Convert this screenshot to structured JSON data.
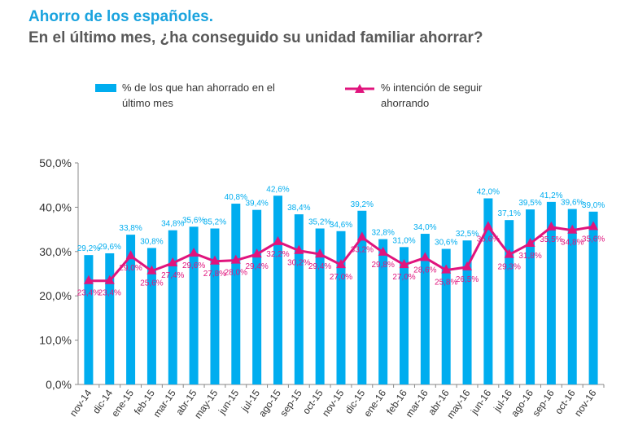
{
  "chart_data": {
    "type": "bar",
    "title": "Ahorro de los españoles.",
    "subtitle": "En el último mes, ¿ha conseguido su unidad familiar ahorrar?",
    "categories": [
      "nov-14",
      "dic-14",
      "ene-15",
      "feb-15",
      "mar-15",
      "abr-15",
      "may-15",
      "jun-15",
      "jul-15",
      "ago-15",
      "sep-15",
      "oct-15",
      "nov-15",
      "dic-15",
      "ene-16",
      "feb-16",
      "mar-16",
      "abr-16",
      "may-16",
      "jun-16",
      "jul-16",
      "ago-16",
      "sep-16",
      "oct-16",
      "nov-16"
    ],
    "series": [
      {
        "name": "% de los que han ahorrado en el último mes",
        "type": "bar",
        "color": "#00adef",
        "values": [
          29.2,
          29.6,
          33.8,
          30.8,
          34.8,
          35.6,
          35.2,
          40.8,
          39.4,
          42.6,
          38.4,
          35.2,
          34.6,
          39.2,
          32.8,
          31.0,
          34.0,
          30.6,
          32.5,
          42.0,
          37.1,
          39.5,
          41.2,
          39.6,
          39.0
        ]
      },
      {
        "name": "% intención de seguir ahorrando",
        "type": "line",
        "marker": "triangle",
        "color": "#e0147d",
        "values": [
          23.4,
          23.4,
          29.0,
          25.6,
          27.4,
          29.6,
          27.8,
          28.0,
          29.4,
          32.2,
          30.2,
          29.4,
          27.0,
          33.2,
          29.8,
          27.0,
          28.6,
          25.8,
          26.5,
          35.6,
          29.3,
          31.8,
          35.5,
          34.8,
          35.6
        ]
      }
    ],
    "ylim": [
      0,
      50
    ],
    "yticks": [
      "0,0%",
      "10,0%",
      "20,0%",
      "30,0%",
      "40,0%",
      "50,0%"
    ],
    "grid": false,
    "legend": "top"
  }
}
